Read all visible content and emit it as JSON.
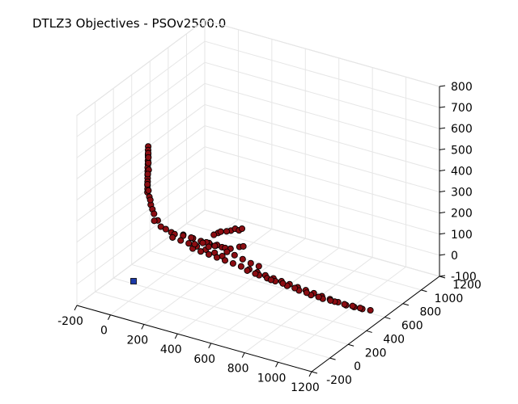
{
  "chart_data": {
    "type": "scatter",
    "title": "DTLZ3 Objectives - PSOv2500.0",
    "x_ticks": [
      "-200",
      "0",
      "200",
      "400",
      "600",
      "800",
      "1000",
      "1200"
    ],
    "y_ticks": [
      "-200",
      "0",
      "200",
      "400",
      "600",
      "800",
      "1000",
      "1200"
    ],
    "z_ticks": [
      "-100",
      "0",
      "100",
      "200",
      "300",
      "400",
      "500",
      "600",
      "700",
      "800"
    ],
    "xlim": [
      -200,
      1200
    ],
    "ylim": [
      -200,
      1200
    ],
    "zlim": [
      -100,
      800
    ],
    "grid": true,
    "colors": {
      "series_fill": "#8b0d12",
      "series_edge": "#000000",
      "reference": "#1c3aa8"
    },
    "series": [
      {
        "points": [
          [
            -36,
            280,
            535
          ],
          [
            -34,
            275,
            520
          ],
          [
            -32,
            272,
            505
          ],
          [
            -30,
            268,
            490
          ],
          [
            -29,
            264,
            475
          ],
          [
            -27,
            260,
            460
          ],
          [
            -26,
            256,
            445
          ],
          [
            -24,
            252,
            430
          ],
          [
            -22,
            248,
            415
          ],
          [
            -20,
            244,
            400
          ],
          [
            -18,
            240,
            385
          ],
          [
            -16,
            236,
            370
          ],
          [
            -14,
            232,
            355
          ],
          [
            -12,
            228,
            340
          ],
          [
            -25,
            258,
            505
          ],
          [
            -20,
            252,
            470
          ],
          [
            -15,
            246,
            440
          ],
          [
            -28,
            265,
            510
          ],
          [
            -33,
            276,
            485
          ],
          [
            -19,
            244,
            420
          ],
          [
            -10,
            224,
            380
          ],
          [
            0,
            216,
            355
          ],
          [
            10,
            208,
            330
          ],
          [
            25,
            196,
            300
          ],
          [
            40,
            186,
            285
          ],
          [
            55,
            176,
            270
          ],
          [
            85,
            162,
            250
          ],
          [
            110,
            150,
            230
          ],
          [
            60,
            170,
            240
          ],
          [
            20,
            200,
            320
          ],
          [
            140,
            150,
            225
          ],
          [
            170,
            155,
            215
          ],
          [
            230,
            175,
            210
          ],
          [
            280,
            190,
            200
          ],
          [
            320,
            205,
            190
          ],
          [
            360,
            225,
            180
          ],
          [
            390,
            235,
            175
          ],
          [
            420,
            250,
            170
          ],
          [
            460,
            270,
            165
          ],
          [
            500,
            295,
            175
          ],
          [
            520,
            300,
            180
          ],
          [
            430,
            330,
            225
          ],
          [
            450,
            340,
            235
          ],
          [
            410,
            320,
            220
          ],
          [
            370,
            300,
            210
          ],
          [
            350,
            290,
            200
          ],
          [
            380,
            310,
            215
          ],
          [
            470,
            345,
            230
          ],
          [
            485,
            350,
            240
          ],
          [
            170,
            190,
            195
          ],
          [
            210,
            210,
            190
          ],
          [
            250,
            225,
            185
          ],
          [
            300,
            240,
            175
          ],
          [
            340,
            255,
            170
          ],
          [
            380,
            270,
            165
          ],
          [
            420,
            285,
            155
          ],
          [
            150,
            205,
            170
          ],
          [
            190,
            220,
            160
          ],
          [
            230,
            235,
            150
          ],
          [
            270,
            250,
            140
          ],
          [
            315,
            265,
            130
          ],
          [
            360,
            280,
            120
          ],
          [
            400,
            290,
            110
          ],
          [
            300,
            300,
            150
          ],
          [
            345,
            310,
            140
          ],
          [
            240,
            260,
            120
          ],
          [
            280,
            275,
            110
          ],
          [
            320,
            290,
            100
          ],
          [
            360,
            305,
            90
          ],
          [
            400,
            320,
            80
          ],
          [
            440,
            335,
            70
          ],
          [
            480,
            350,
            60
          ],
          [
            520,
            365,
            50
          ],
          [
            560,
            380,
            40
          ],
          [
            600,
            395,
            30
          ],
          [
            640,
            410,
            20
          ],
          [
            680,
            425,
            10
          ],
          [
            720,
            440,
            0
          ],
          [
            760,
            455,
            -10
          ],
          [
            800,
            470,
            -20
          ],
          [
            840,
            485,
            -30
          ],
          [
            880,
            500,
            -40
          ],
          [
            920,
            515,
            -50
          ],
          [
            960,
            530,
            -60
          ],
          [
            1000,
            545,
            -70
          ],
          [
            1040,
            560,
            -75
          ],
          [
            1080,
            575,
            -80
          ],
          [
            1120,
            590,
            -82
          ],
          [
            560,
            400,
            20
          ],
          [
            600,
            415,
            10
          ],
          [
            640,
            430,
            0
          ],
          [
            700,
            450,
            -15
          ],
          [
            760,
            470,
            -30
          ],
          [
            820,
            490,
            -45
          ],
          [
            880,
            510,
            -55
          ],
          [
            940,
            530,
            -62
          ],
          [
            990,
            545,
            -68
          ],
          [
            1030,
            560,
            -72
          ],
          [
            1070,
            570,
            -76
          ],
          [
            500,
            380,
            35
          ],
          [
            540,
            395,
            25
          ],
          [
            620,
            420,
            5
          ],
          [
            680,
            440,
            -5
          ],
          [
            740,
            460,
            -20
          ],
          [
            800,
            480,
            -35
          ],
          [
            860,
            500,
            -48
          ],
          [
            920,
            520,
            -58
          ],
          [
            300,
            260,
            160
          ],
          [
            330,
            270,
            145
          ],
          [
            260,
            245,
            150
          ],
          [
            420,
            305,
            130
          ],
          [
            460,
            315,
            120
          ],
          [
            500,
            330,
            105
          ],
          [
            540,
            345,
            90
          ],
          [
            580,
            360,
            80
          ]
        ]
      }
    ],
    "reference_point": [
      -200,
      -200,
      -100
    ]
  }
}
